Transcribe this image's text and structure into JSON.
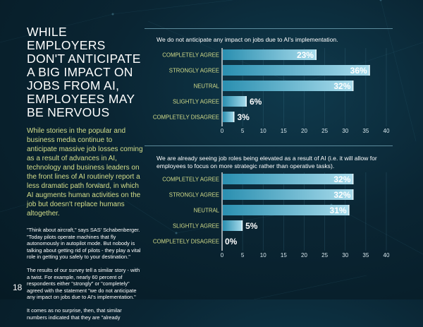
{
  "page": {
    "headline": "WHILE EMPLOYERS DON'T ANTICIPATE A BIG IMPACT ON JOBS FROM AI, EMPLOYEES MAY BE NERVOUS",
    "intro": "While stories in the popular and business media continue to anticipate massive job losses coming as a result of advances in AI, technology and business leaders on the front lines of AI routinely report a less dramatic path forward, in which AI augments human activities on the job but doesn't replace humans altogether.",
    "quote": "\"Think about aircraft,\" says SAS' Schabenberger. \"Today pilots operate machines that fly autonomously in autopilot mode. But nobody is talking about getting rid of pilots - they play a vital role in getting you safely to your destination.\"",
    "para2": "The results of our survey tell a similar story - with a twist. For example, nearly 60 percent of respondents either \"strongly\" or \"completely\" agreed with the statement \"we do not anticipate any impact on jobs due to AI's implementation.\"",
    "para3": "It comes as no surprise, then, that similar numbers indicated that they are \"already",
    "page_number": "18"
  },
  "colors": {
    "background": "#0a2533",
    "bar_gradient_start": "#2a8fb0",
    "bar_gradient_end": "#a9dcec",
    "category_label": "#d4de8a",
    "intro_text": "#d4de8a"
  },
  "chart_data": [
    {
      "type": "bar",
      "orientation": "horizontal",
      "title": "We do not anticipate any impact on jobs due to AI's implementation.",
      "categories": [
        "COMPLETELY AGREE",
        "STRONGLY AGREE",
        "NEUTRAL",
        "SLIGHTLY AGREE",
        "COMPLETELY DISAGREE"
      ],
      "values": [
        23,
        36,
        32,
        6,
        3
      ],
      "value_labels": [
        "23%",
        "36%",
        "32%",
        "6%",
        "3%"
      ],
      "xlim": [
        0,
        40
      ],
      "xticks": [
        "0",
        "5",
        "10",
        "15",
        "20",
        "25",
        "30",
        "35",
        "40"
      ],
      "grid": true
    },
    {
      "type": "bar",
      "orientation": "horizontal",
      "title": "We are already seeing job roles being elevated as a result of AI (i.e. it will allow for employees to focus on more strategic rather than operative tasks).",
      "categories": [
        "COMPLETELY AGREE",
        "STRONGLY AGREE",
        "NEUTRAL",
        "SLIGHTLY AGREE",
        "COMPLETELY DISAGREE"
      ],
      "values": [
        32,
        32,
        31,
        5,
        0
      ],
      "value_labels": [
        "32%",
        "32%",
        "31%",
        "5%",
        "0%"
      ],
      "xlim": [
        0,
        40
      ],
      "xticks": [
        "0",
        "5",
        "10",
        "15",
        "20",
        "25",
        "30",
        "35",
        "40"
      ],
      "grid": true
    }
  ]
}
